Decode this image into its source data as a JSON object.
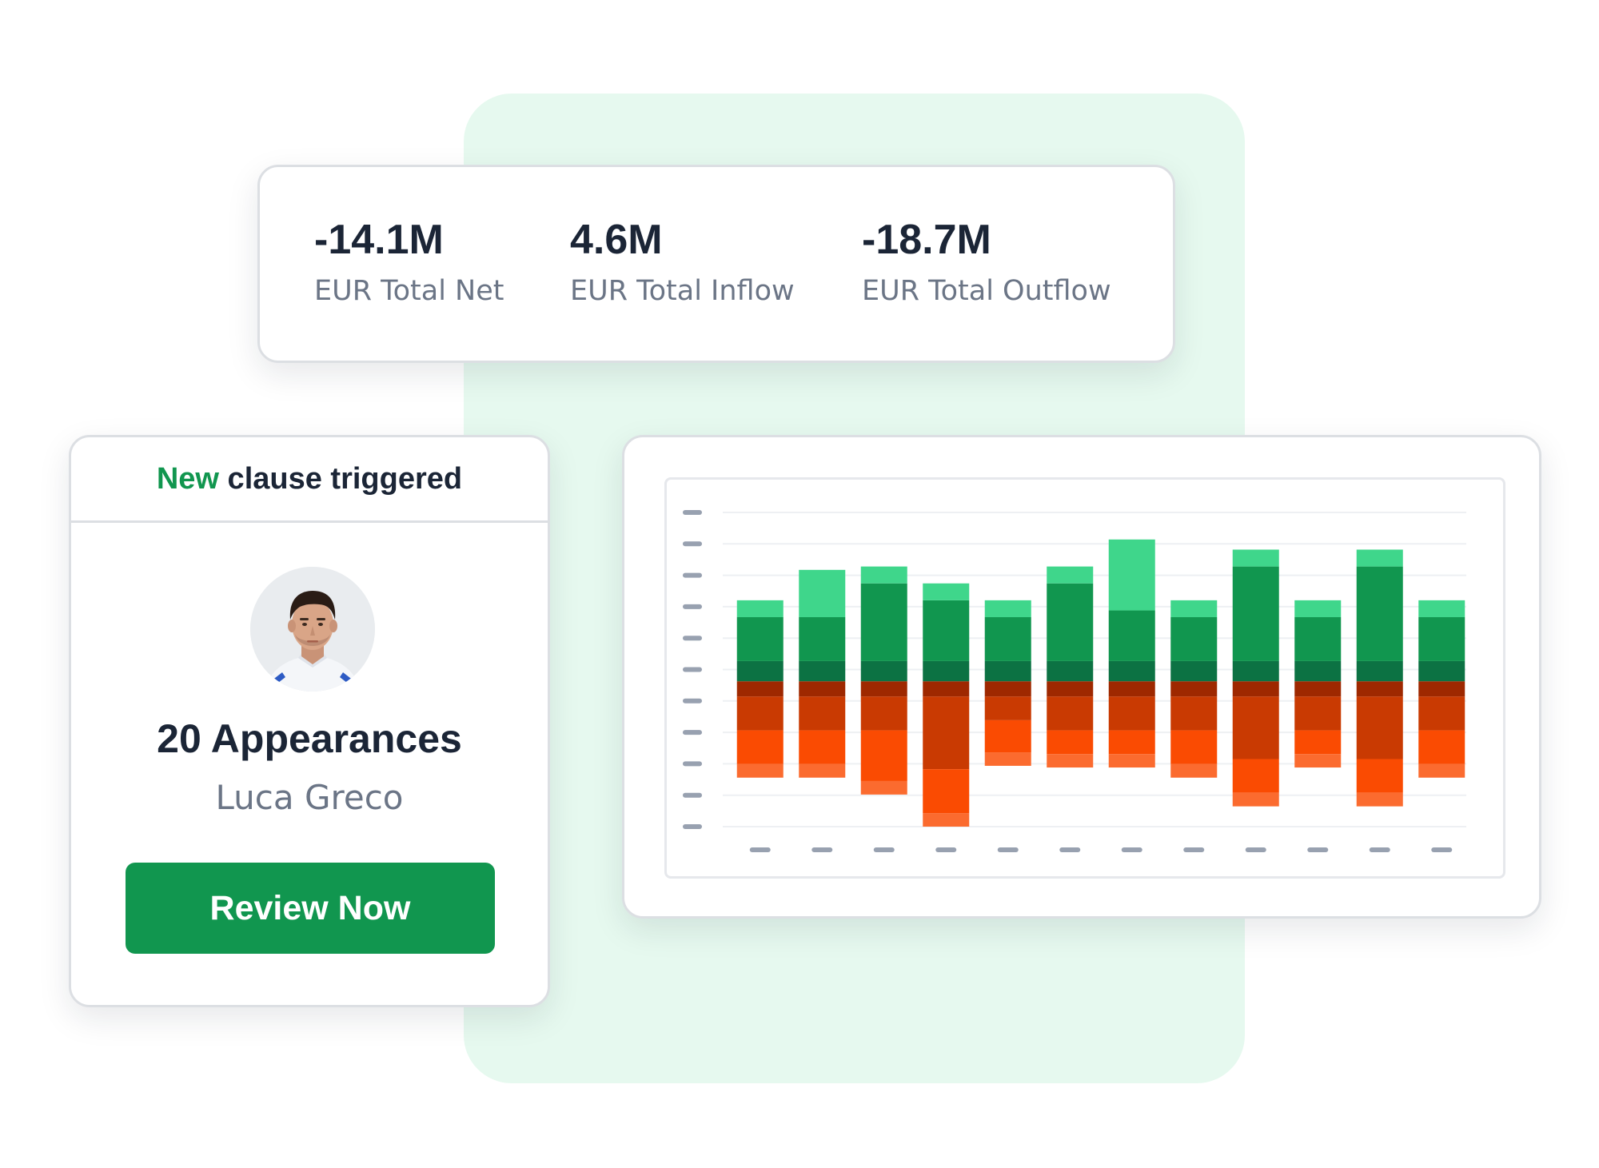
{
  "stats": {
    "net": {
      "value": "-14.1M",
      "label": "EUR Total Net"
    },
    "inflow": {
      "value": "4.6M",
      "label": "EUR Total Inflow"
    },
    "outflow": {
      "value": "-18.7M",
      "label": "EUR Total Outflow"
    }
  },
  "clause": {
    "header_new": "New",
    "header_rest": " clause triggered",
    "appearances": "20 Appearances",
    "player": "Luca Greco",
    "button": "Review Now"
  },
  "colors": {
    "brand_green": "#11964f",
    "accent_bg": "#e6f9ef",
    "inflow_light": "#3fd68b",
    "inflow_mid": "#11964f",
    "inflow_dark": "#0c7243",
    "outflow_dark": "#9e2800",
    "outflow_mid": "#c93a02",
    "outflow_bright": "#fa4b02",
    "outflow_light": "#fb6b2f"
  },
  "chart_data": {
    "type": "bar",
    "stacked": true,
    "grid": true,
    "legend": "none",
    "categories": [
      "",
      "",
      "",
      "",
      "",
      "",
      "",
      "",
      "",
      "",
      "",
      ""
    ],
    "series": [
      {
        "values": [
          1.2,
          1.2,
          1.2,
          1.2,
          1.2,
          1.2,
          1.2,
          1.2,
          1.2,
          1.2,
          1.2,
          1.2
        ]
      },
      {
        "values": [
          2.6,
          2.6,
          4.6,
          3.6,
          2.6,
          4.6,
          3.0,
          2.6,
          5.6,
          2.6,
          5.6,
          2.6
        ]
      },
      {
        "values": [
          1.0,
          2.8,
          1.0,
          1.0,
          1.0,
          1.0,
          4.2,
          1.0,
          1.0,
          1.0,
          1.0,
          1.0
        ]
      },
      {
        "values": [
          -0.9,
          -0.9,
          -0.9,
          -0.9,
          -0.9,
          -0.9,
          -0.9,
          -0.9,
          -0.9,
          -0.9,
          -0.9,
          -0.9
        ]
      },
      {
        "values": [
          -2.0,
          -2.0,
          -2.0,
          -4.3,
          -1.4,
          -2.0,
          -2.0,
          -2.0,
          -3.7,
          -2.0,
          -3.7,
          -2.0
        ]
      },
      {
        "values": [
          -2.0,
          -2.0,
          -3.0,
          -2.6,
          -1.9,
          -1.4,
          -1.4,
          -2.0,
          -2.0,
          -1.4,
          -2.0,
          -2.0
        ]
      },
      {
        "values": [
          -0.8,
          -0.8,
          -0.8,
          -0.8,
          -0.8,
          -0.8,
          -0.8,
          -0.8,
          -0.8,
          -0.8,
          -0.8,
          -0.8
        ]
      }
    ],
    "ylim": [
      -8.6,
      10.0
    ]
  }
}
